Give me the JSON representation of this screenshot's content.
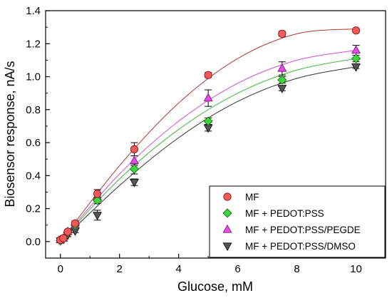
{
  "chart_data": {
    "type": "scatter",
    "title": "",
    "xlabel": "Glucose, mM",
    "ylabel": "Biosensor response, nA/s",
    "xlim": [
      -0.5,
      11
    ],
    "ylim": [
      -0.1,
      1.4
    ],
    "xticks": [
      0,
      2,
      4,
      6,
      8,
      10
    ],
    "yticks": [
      0.0,
      0.2,
      0.4,
      0.6,
      0.8,
      1.0,
      1.2,
      1.4
    ],
    "grid": false,
    "legend_position": "bottom-right",
    "fit_curves": true,
    "series": [
      {
        "name": "MF",
        "marker": "circle",
        "color": "#f05a5a",
        "edge": "#8a1a1a",
        "line_color": "#b03a2e",
        "x": [
          0,
          0.1,
          0.25,
          0.5,
          1.25,
          2.5,
          5,
          7.5,
          10
        ],
        "y": [
          0.01,
          0.02,
          0.06,
          0.11,
          0.29,
          0.56,
          1.01,
          1.26,
          1.28
        ],
        "err": [
          0.01,
          0.01,
          0.01,
          0.015,
          0.025,
          0.04,
          0.015,
          0.015,
          0.01
        ],
        "fit": [
          [
            0,
            0.0
          ],
          [
            2,
            0.46
          ],
          [
            4,
            0.84
          ],
          [
            6,
            1.11
          ],
          [
            8,
            1.26
          ],
          [
            10,
            1.29
          ]
        ]
      },
      {
        "name": "MF + PEDOT:PSS",
        "marker": "diamond",
        "color": "#3dd63d",
        "edge": "#157015",
        "line_color": "#3dbb3d",
        "x": [
          0,
          0.1,
          0.25,
          0.5,
          1.25,
          2.5,
          5,
          7.5,
          10
        ],
        "y": [
          0.005,
          0.02,
          0.055,
          0.1,
          0.25,
          0.44,
          0.73,
          0.98,
          1.11
        ],
        "err": [
          0.005,
          0.005,
          0.01,
          0.01,
          0.02,
          0.03,
          0.02,
          0.02,
          0.02
        ],
        "fit": [
          [
            0,
            0.0
          ],
          [
            2,
            0.38
          ],
          [
            4,
            0.68
          ],
          [
            6,
            0.9
          ],
          [
            8,
            1.04
          ],
          [
            10,
            1.11
          ]
        ]
      },
      {
        "name": "MF + PEDOT:PSS/PEGDE",
        "marker": "triangle-up",
        "color": "#e64ce6",
        "edge": "#7a1a7a",
        "line_color": "#d24fd2",
        "x": [
          0,
          0.1,
          0.25,
          0.5,
          1.25,
          2.5,
          5,
          7.5,
          10
        ],
        "y": [
          0.01,
          0.02,
          0.06,
          0.1,
          0.27,
          0.49,
          0.87,
          1.05,
          1.16
        ],
        "err": [
          0.01,
          0.01,
          0.01,
          0.015,
          0.025,
          0.03,
          0.05,
          0.04,
          0.03
        ],
        "fit": [
          [
            0,
            0.0
          ],
          [
            2,
            0.41
          ],
          [
            4,
            0.73
          ],
          [
            6,
            0.96
          ],
          [
            8,
            1.1
          ],
          [
            10,
            1.16
          ]
        ]
      },
      {
        "name": "MF + PEDOT:PSS/DMSO",
        "marker": "triangle-down",
        "color": "#555555",
        "edge": "#111111",
        "line_color": "#333333",
        "x": [
          0,
          0.1,
          0.25,
          0.5,
          1.25,
          2.5,
          5,
          7.5,
          10
        ],
        "y": [
          0.005,
          0.015,
          0.04,
          0.065,
          0.16,
          0.36,
          0.69,
          0.93,
          1.06
        ],
        "err": [
          0.005,
          0.005,
          0.01,
          0.01,
          0.03,
          0.02,
          0.02,
          0.015,
          0.01
        ],
        "fit": [
          [
            0,
            0.0
          ],
          [
            2,
            0.34
          ],
          [
            4,
            0.63
          ],
          [
            6,
            0.85
          ],
          [
            8,
            0.99
          ],
          [
            10,
            1.06
          ]
        ]
      }
    ]
  }
}
